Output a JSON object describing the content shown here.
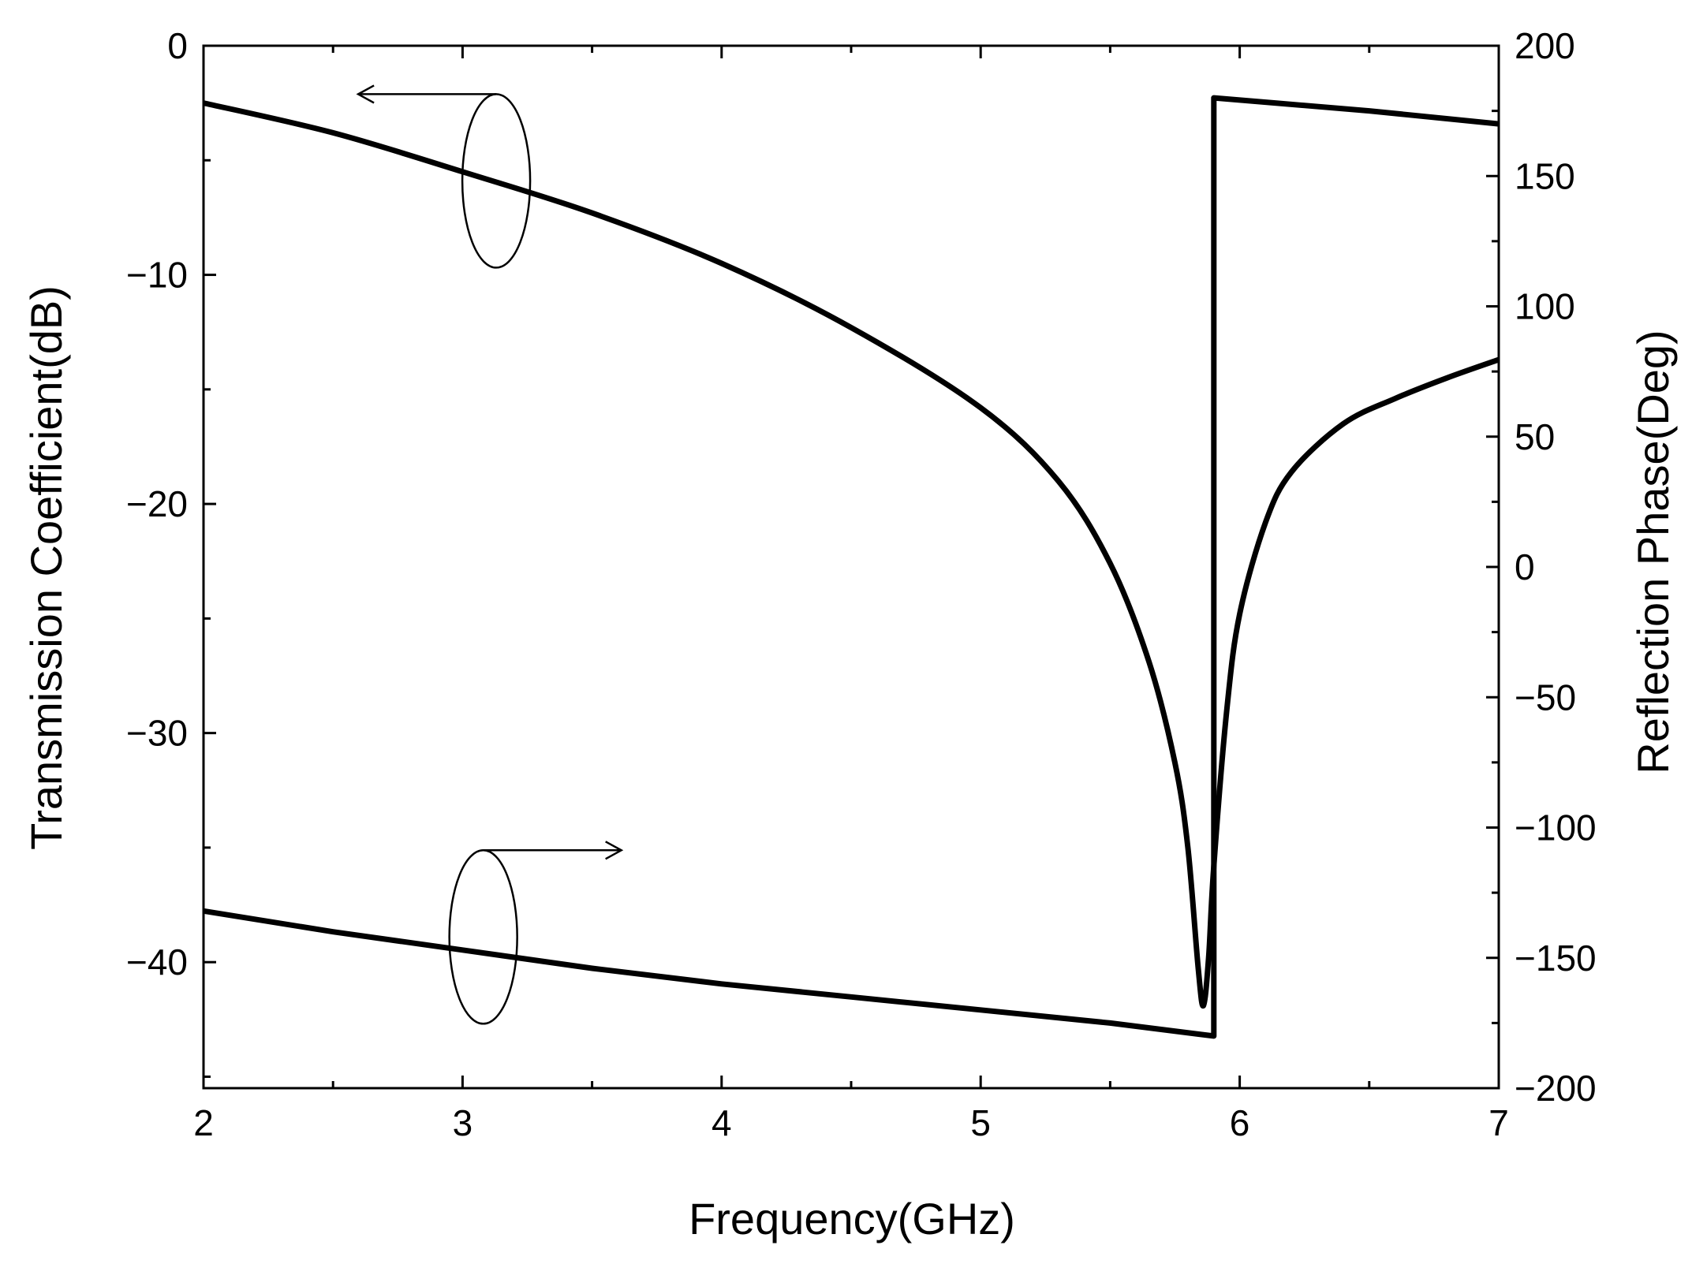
{
  "chart_data": {
    "type": "line",
    "xlabel": "Frequency(GHz)",
    "ylabel_left": "Transmission Coefficient(dB)",
    "ylabel_right": "Reflection Phase(Deg)",
    "xlim": [
      2,
      7
    ],
    "ylim_left": [
      -45.5,
      0
    ],
    "ylim_right": [
      -200,
      200
    ],
    "x_ticks": [
      "2",
      "3",
      "4",
      "5",
      "6",
      "7"
    ],
    "y_left_ticks": [
      "0",
      "−10",
      "−20",
      "−30",
      "−40"
    ],
    "y_right_ticks": [
      "200",
      "150",
      "100",
      "50",
      "0",
      "−50",
      "−100",
      "−150",
      "−200"
    ],
    "grid": false,
    "line_color": "#000000",
    "series": [
      {
        "axis": "left",
        "x": [
          2.0,
          2.5,
          3.0,
          3.5,
          4.0,
          4.5,
          5.0,
          5.3,
          5.5,
          5.65,
          5.75,
          5.8,
          5.84,
          5.86,
          5.88,
          5.9,
          5.95,
          6.0,
          6.1,
          6.2,
          6.4,
          6.6,
          6.8,
          7.0
        ],
        "y": [
          -2.5,
          -3.8,
          -5.5,
          -7.3,
          -9.5,
          -12.3,
          -15.8,
          -19.0,
          -22.6,
          -26.9,
          -31.3,
          -35.0,
          -40.3,
          -41.9,
          -39.8,
          -35.8,
          -29.0,
          -24.8,
          -20.8,
          -18.6,
          -16.5,
          -15.4,
          -14.5,
          -13.7
        ]
      },
      {
        "axis": "right",
        "x": [
          2.0,
          2.5,
          3.0,
          3.5,
          4.0,
          4.5,
          5.0,
          5.5,
          5.9,
          5.9,
          6.5,
          7.0
        ],
        "y": [
          -132,
          -140,
          -147,
          -154,
          -160,
          -165,
          -170,
          -175,
          -180,
          180,
          175,
          170
        ]
      }
    ],
    "annotations": [
      {
        "target": "left",
        "arrow_direction": "left"
      },
      {
        "target": "right",
        "arrow_direction": "right"
      }
    ]
  }
}
